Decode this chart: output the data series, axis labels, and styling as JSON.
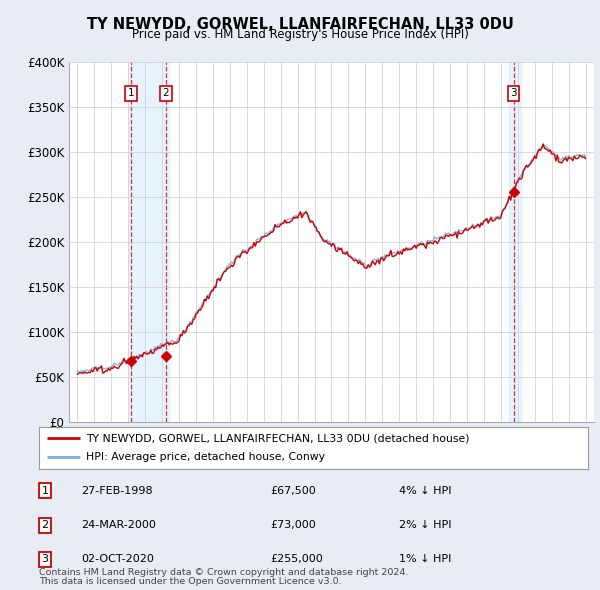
{
  "title": "TY NEWYDD, GORWEL, LLANFAIRFECHAN, LL33 0DU",
  "subtitle": "Price paid vs. HM Land Registry's House Price Index (HPI)",
  "legend_line1": "TY NEWYDD, GORWEL, LLANFAIRFECHAN, LL33 0DU (detached house)",
  "legend_line2": "HPI: Average price, detached house, Conwy",
  "footer1": "Contains HM Land Registry data © Crown copyright and database right 2024.",
  "footer2": "This data is licensed under the Open Government Licence v3.0.",
  "transactions": [
    {
      "num": 1,
      "date": "27-FEB-1998",
      "year": 1998.15,
      "price": 67500,
      "pct": "4%",
      "dir": "↓"
    },
    {
      "num": 2,
      "date": "24-MAR-2000",
      "year": 2000.23,
      "price": 73000,
      "pct": "2%",
      "dir": "↓"
    },
    {
      "num": 3,
      "date": "02-OCT-2020",
      "year": 2020.75,
      "price": 255000,
      "pct": "1%",
      "dir": "↓"
    }
  ],
  "hpi_color": "#7bafd4",
  "price_color": "#cc0000",
  "marker_color": "#cc0000",
  "shade_color": "#ddeeff",
  "ylim": [
    0,
    400000
  ],
  "yticks": [
    0,
    50000,
    100000,
    150000,
    200000,
    250000,
    300000,
    350000,
    400000
  ],
  "ytick_labels": [
    "£0",
    "£50K",
    "£100K",
    "£150K",
    "£200K",
    "£250K",
    "£300K",
    "£350K",
    "£400K"
  ],
  "xlim_start": 1994.5,
  "xlim_end": 2025.5,
  "background_color": "#e8edf5",
  "plot_bg_color": "#ffffff",
  "grid_color": "#cccccc"
}
